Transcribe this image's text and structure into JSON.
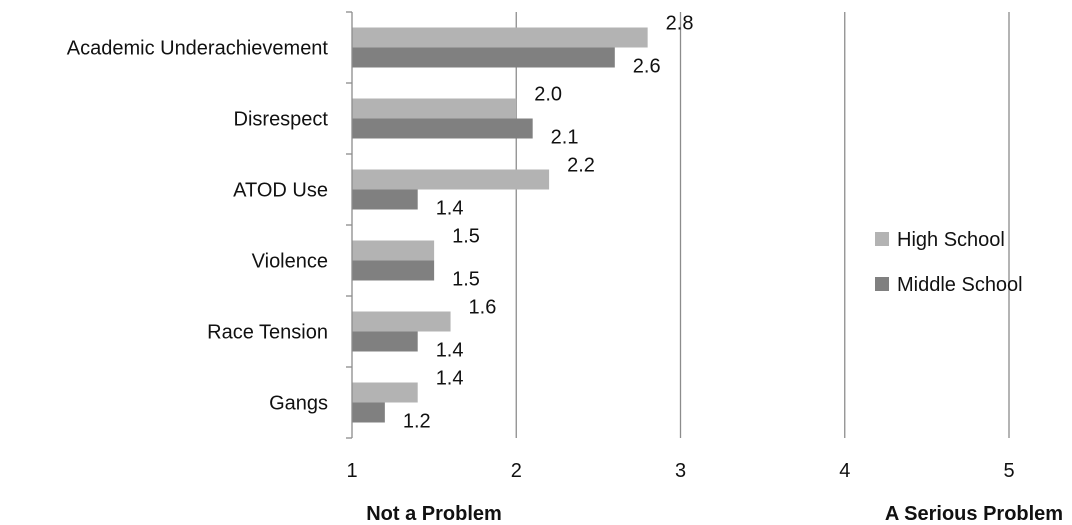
{
  "chart_data": {
    "type": "bar",
    "orientation": "horizontal",
    "categories": [
      "Academic Underachievement",
      "Disrespect",
      "ATOD Use",
      "Violence",
      "Race Tension",
      "Gangs"
    ],
    "series": [
      {
        "name": "High School",
        "values": [
          2.8,
          2.0,
          2.2,
          1.5,
          1.6,
          1.4
        ],
        "labels": [
          "2.8",
          "2.0",
          "2.2",
          "1.5",
          "1.6",
          "1.4"
        ],
        "color": "#b3b3b3"
      },
      {
        "name": "Middle School",
        "values": [
          2.6,
          2.1,
          1.4,
          1.5,
          1.4,
          1.2
        ],
        "labels": [
          "2.6",
          "2.1",
          "1.4",
          "1.5",
          "1.4",
          "1.2"
        ],
        "color": "#808080"
      }
    ],
    "xlim": [
      1,
      5
    ],
    "xticks": [
      "1",
      "2",
      "3",
      "4",
      "5"
    ],
    "gridlines": true,
    "legend": "right",
    "scale_end_labels": {
      "low": "Not a Problem",
      "high": "A Serious Problem"
    }
  }
}
